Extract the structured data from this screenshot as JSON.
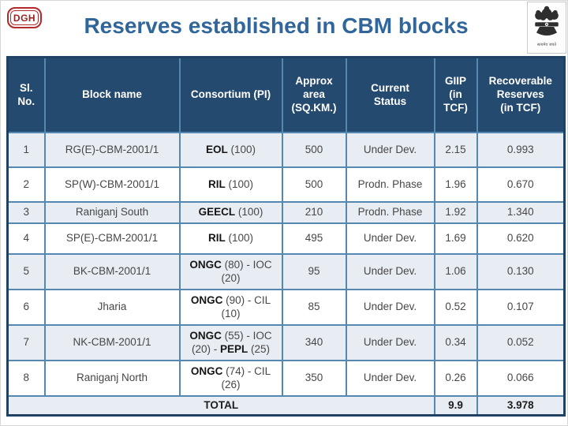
{
  "slide": {
    "logo_text": "DGH",
    "title": "Reserves established in CBM blocks",
    "emblem": {
      "icon": "india-national-emblem-icon",
      "caption": "सत्यमेव जयते"
    }
  },
  "colors": {
    "title_text": "#31669b",
    "table_header_bg": "#254a70",
    "cell_border": "#5588b0",
    "outer_border": "#1f4264",
    "banded_row_bg": "#e8edf4",
    "logo_red": "#b32b2b"
  },
  "table": {
    "columns": [
      {
        "label": "Sl. No."
      },
      {
        "label": "Block name"
      },
      {
        "label": "Consortium (PI)"
      },
      {
        "label": "Approx\narea\n(SQ.KM.)"
      },
      {
        "label": "Current\nStatus"
      },
      {
        "label": "GIIP\n(in\nTCF)"
      },
      {
        "label": "Recoverable\nReserves\n(in TCF)"
      }
    ],
    "rows": [
      {
        "sl": "1",
        "block": "RG(E)-CBM-2001/1",
        "consortium": [
          {
            "t": "EOL",
            "b": true
          },
          {
            "t": " (100)",
            "b": false
          }
        ],
        "area": "500",
        "status": "Under Dev.",
        "giip": "2.15",
        "recoverable": "0.993"
      },
      {
        "sl": "2",
        "block": "SP(W)-CBM-2001/1",
        "consortium": [
          {
            "t": "RIL",
            "b": true
          },
          {
            "t": " (100)",
            "b": false
          }
        ],
        "area": "500",
        "status": "Prodn. Phase",
        "giip": "1.96",
        "recoverable": "0.670"
      },
      {
        "sl": "3",
        "block": "Raniganj South",
        "consortium": [
          {
            "t": "GEECL",
            "b": true
          },
          {
            "t": " (100)",
            "b": false
          }
        ],
        "area": "210",
        "status": "Prodn. Phase",
        "giip": "1.92",
        "recoverable": "1.340"
      },
      {
        "sl": "4",
        "block": "SP(E)-CBM-2001/1",
        "consortium": [
          {
            "t": "RIL",
            "b": true
          },
          {
            "t": " (100)",
            "b": false
          }
        ],
        "area": "495",
        "status": "Under Dev.",
        "giip": "1.69",
        "recoverable": "0.620"
      },
      {
        "sl": "5",
        "block": "BK-CBM-2001/1",
        "consortium": [
          {
            "t": "ONGC",
            "b": true
          },
          {
            "t": " (80) - IOC (20)",
            "b": false
          }
        ],
        "area": "95",
        "status": "Under Dev.",
        "giip": "1.06",
        "recoverable": "0.130"
      },
      {
        "sl": "6",
        "block": "Jharia",
        "consortium": [
          {
            "t": "ONGC",
            "b": true
          },
          {
            "t": " (90) - CIL (10)",
            "b": false
          }
        ],
        "area": "85",
        "status": "Under Dev.",
        "giip": "0.52",
        "recoverable": "0.107"
      },
      {
        "sl": "7",
        "block": "NK-CBM-2001/1",
        "consortium": [
          {
            "t": "ONGC",
            "b": true
          },
          {
            "t": " (55) - IOC (20) - ",
            "b": false
          },
          {
            "t": "PEPL",
            "b": true
          },
          {
            "t": " (25)",
            "b": false
          }
        ],
        "area": "340",
        "status": "Under Dev.",
        "giip": "0.34",
        "recoverable": "0.052"
      },
      {
        "sl": "8",
        "block": "Raniganj North",
        "consortium": [
          {
            "t": "ONGC",
            "b": true
          },
          {
            "t": " (74) - CIL (26)",
            "b": false
          }
        ],
        "area": "350",
        "status": "Under Dev.",
        "giip": "0.26",
        "recoverable": "0.066"
      }
    ],
    "total": {
      "label": "TOTAL",
      "giip": "9.9",
      "recoverable": "3.978"
    }
  }
}
